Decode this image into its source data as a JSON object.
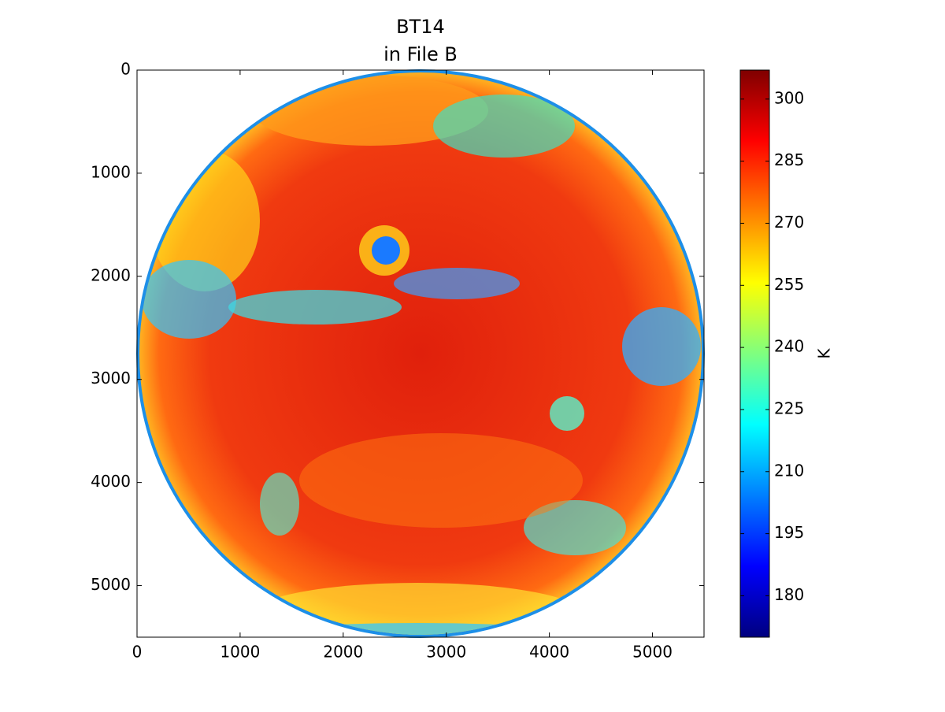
{
  "chart_data": {
    "type": "heatmap",
    "title": [
      "BT14",
      "in File B"
    ],
    "xlim": [
      0,
      5500
    ],
    "xticks": [
      0,
      1000,
      2000,
      3000,
      4000,
      5000
    ],
    "ylim": [
      5500,
      0
    ],
    "yticks": [
      0,
      1000,
      2000,
      3000,
      4000,
      5000
    ],
    "colorbar": {
      "label": "K",
      "lim": [
        170,
        307
      ],
      "ticks": [
        180,
        195,
        210,
        225,
        240,
        255,
        270,
        285,
        300
      ],
      "colors": [
        "#00007f",
        "#0000ff",
        "#007fff",
        "#00ffff",
        "#7fff7f",
        "#ffff00",
        "#ff7f00",
        "#ff0000",
        "#7f0000"
      ]
    }
  }
}
